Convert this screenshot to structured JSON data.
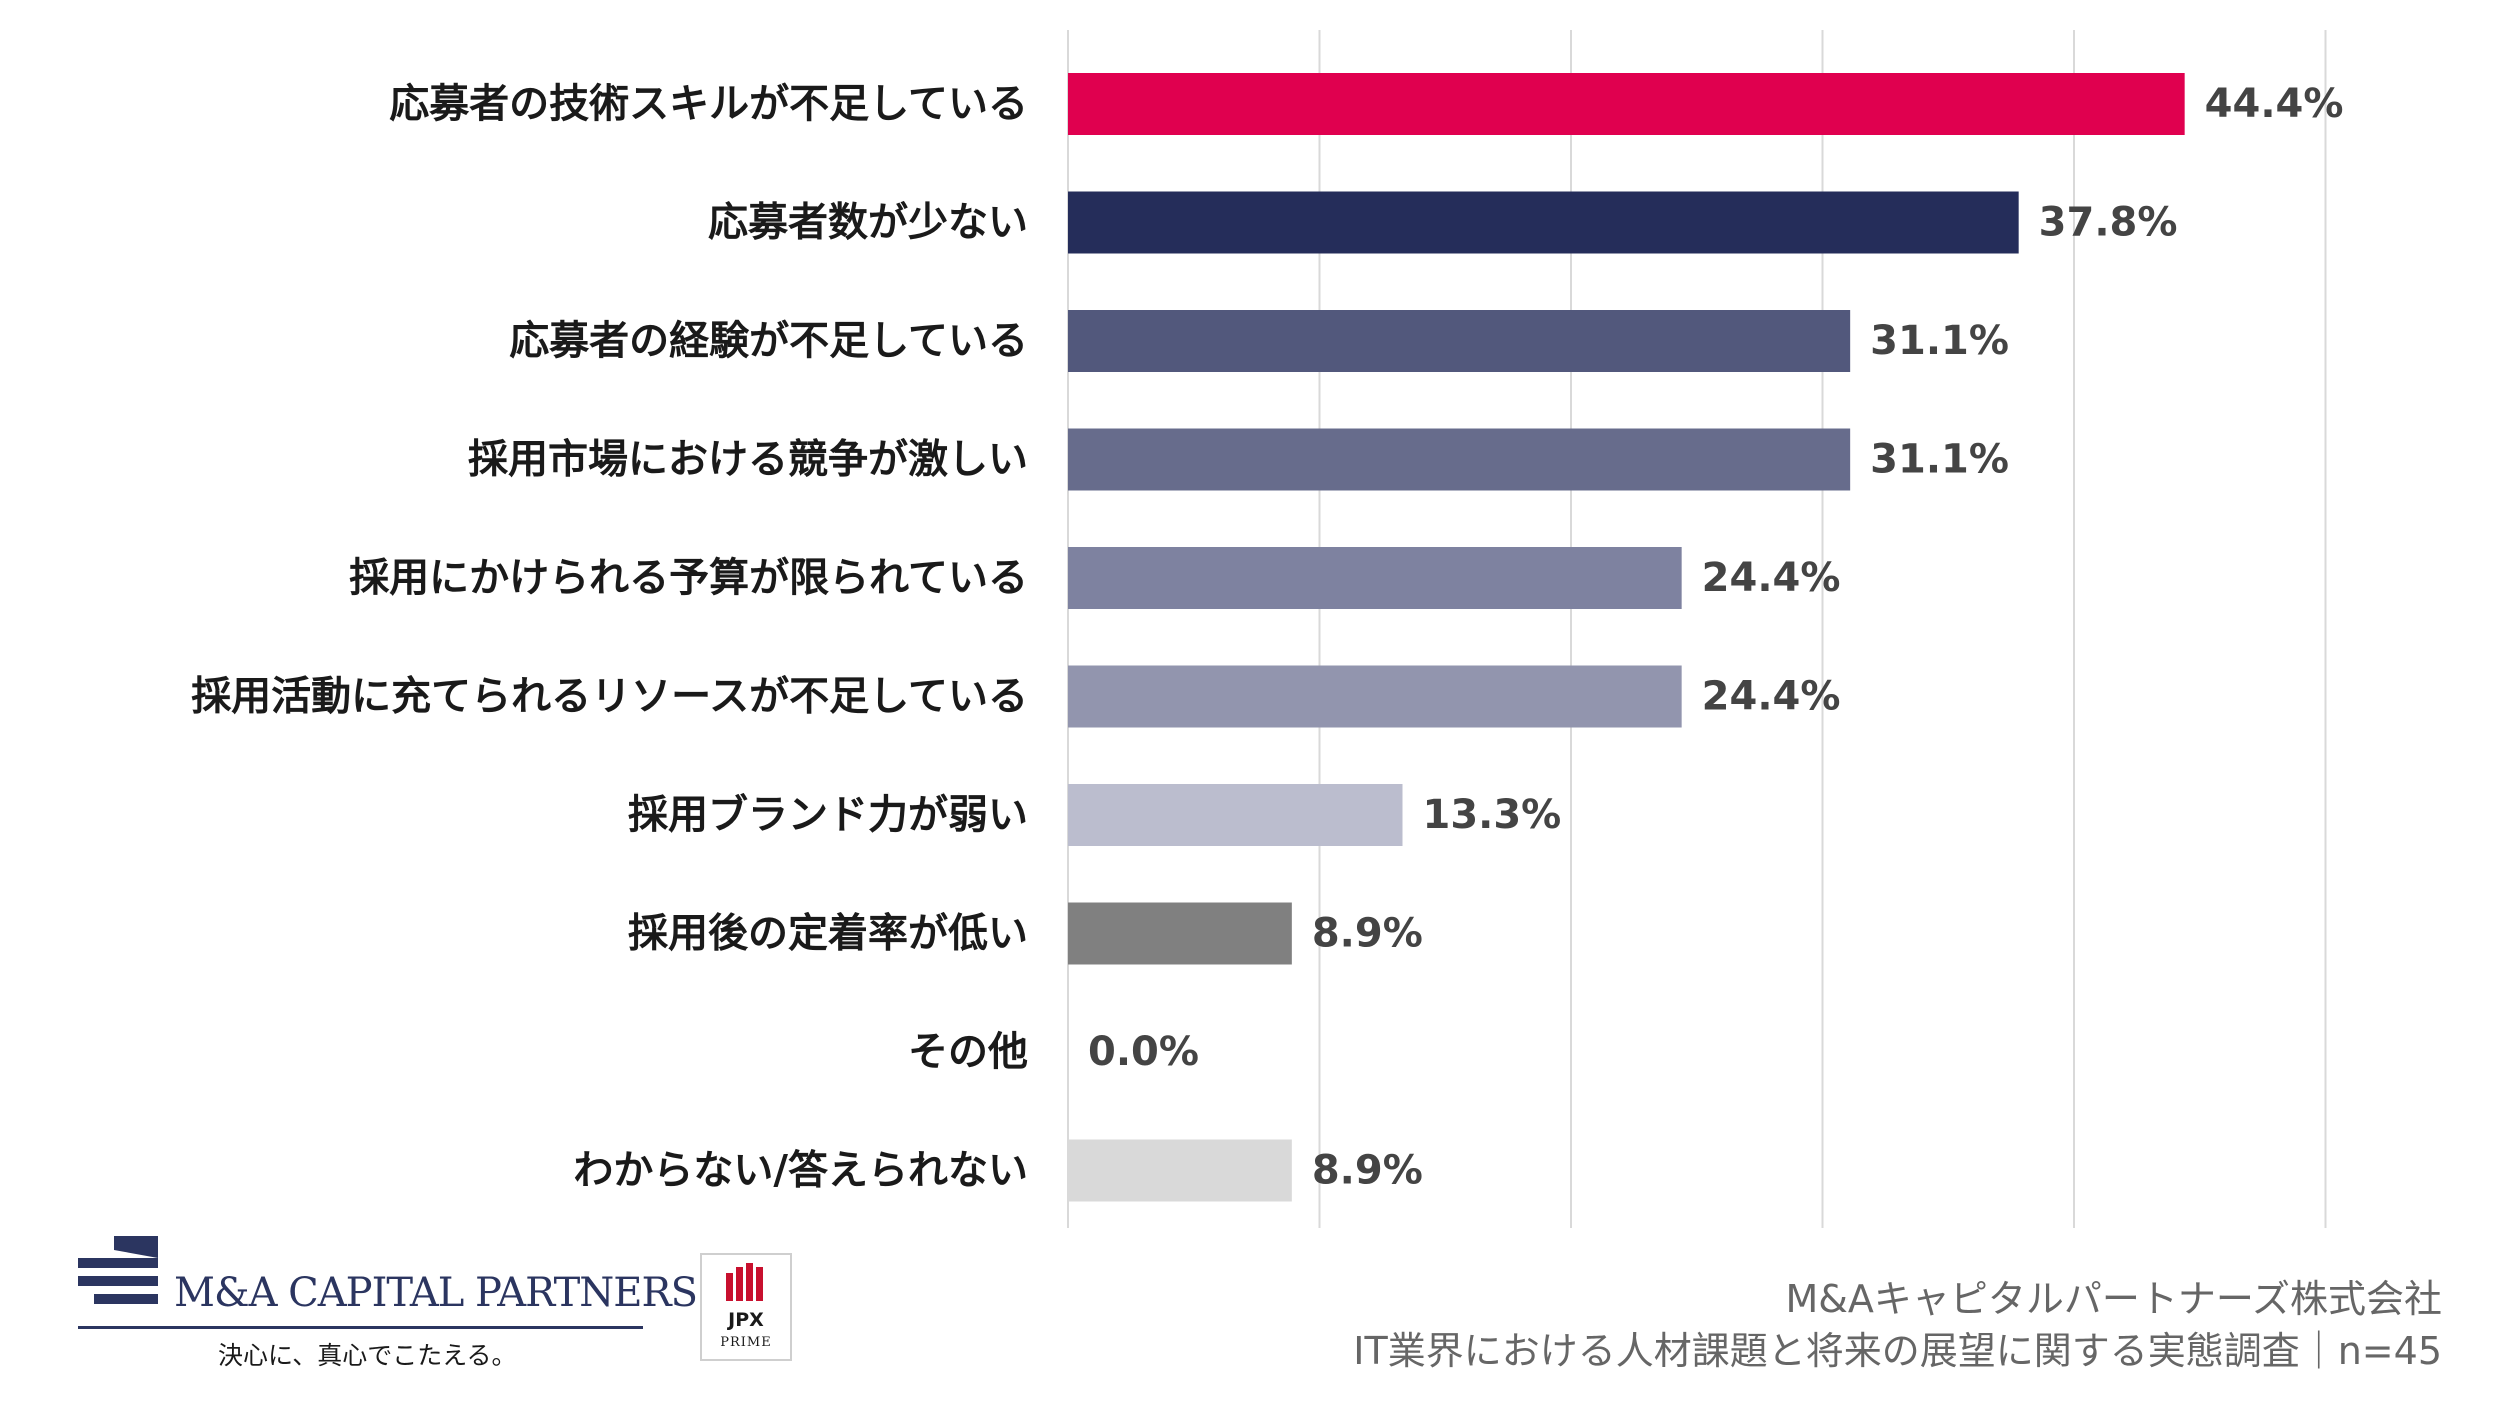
{
  "chart_data": {
    "type": "bar",
    "orientation": "horizontal",
    "categories": [
      "応募者の技術スキルが不足している",
      "応募者数が少ない",
      "応募者の経験が不足している",
      "採用市場における競争が激しい",
      "採用にかけられる予算が限られている",
      "採用活動に充てられるリソースが不足している",
      "採用ブランド力が弱い",
      "採用後の定着率が低い",
      "その他",
      "わからない/答えられない"
    ],
    "values": [
      44.4,
      37.8,
      31.1,
      31.1,
      24.4,
      24.4,
      13.3,
      8.9,
      0.0,
      8.9
    ],
    "value_labels": [
      "44.4%",
      "37.8%",
      "31.1%",
      "31.1%",
      "24.4%",
      "24.4%",
      "13.3%",
      "8.9%",
      "0.0%",
      "8.9%"
    ],
    "colors": [
      "#e0004f",
      "#252d5a",
      "#52587c",
      "#676c8c",
      "#7e82a0",
      "#9295ae",
      "#bbbdce",
      "#808080",
      "#cccccc",
      "#d9d9d9"
    ],
    "xlim": [
      0,
      50
    ],
    "grid": true,
    "gridline_color": "#d9d9d9"
  },
  "footer": {
    "company": "M&Aキャピタルパートナーズ株式会社",
    "survey": "IT業界における人材課題と将来の展望に関する実態調査｜n=45"
  },
  "logo": {
    "name": "M&A CAPITAL PARTNERS",
    "tagline": "決心に、真心でこたえる。",
    "brand_color": "#2b3560"
  },
  "jpx": {
    "mark": "JPX",
    "market": "PRIME",
    "bar_color": "#c8102e"
  }
}
